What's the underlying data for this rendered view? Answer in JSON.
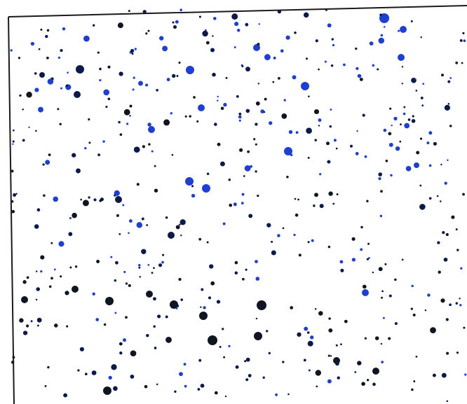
{
  "scene": {
    "subject": "star-chart",
    "colors": {
      "background": "#ffffff",
      "frame": "#1a1a1a",
      "star_blue": "#1f3fd0",
      "star_navy": "#0b1a4a",
      "star_dark": "#101522"
    },
    "stars": {
      "generated_count": 520,
      "seed": 20240
    }
  }
}
